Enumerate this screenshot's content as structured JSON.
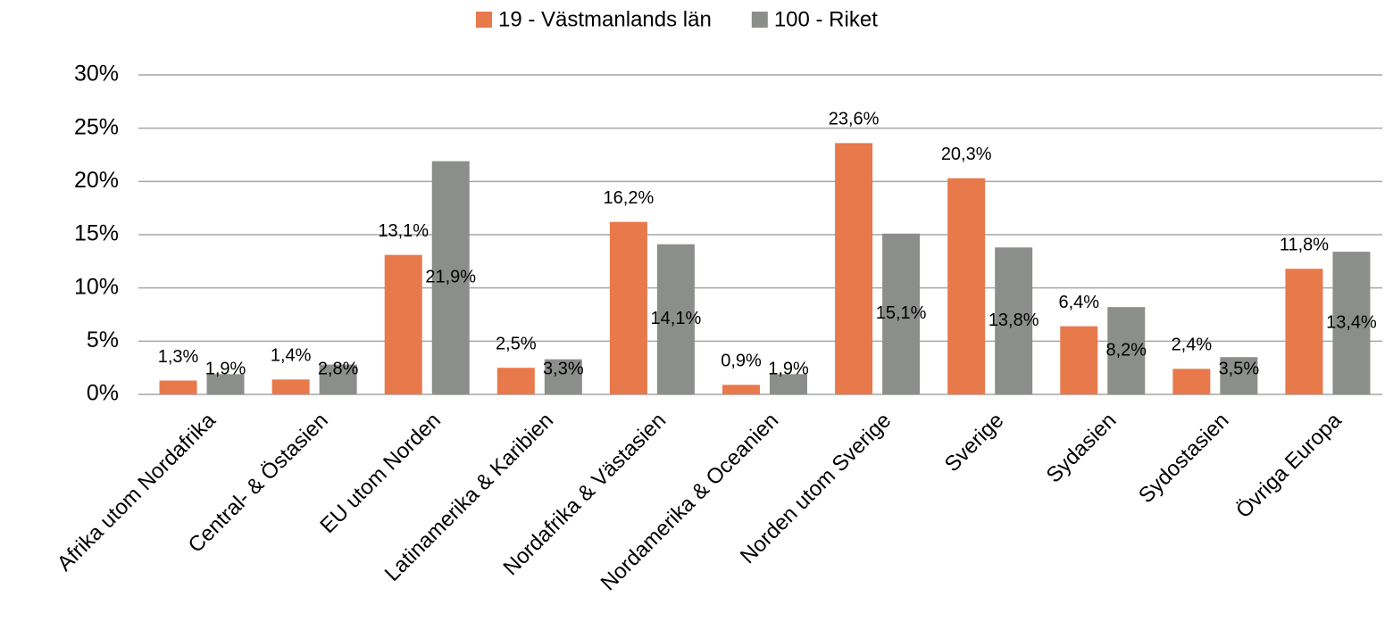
{
  "chart_data": {
    "type": "bar",
    "categories": [
      "Afrika utom Nordafrika",
      "Central- & Östasien",
      "EU utom Norden",
      "Latinamerika & Karibien",
      "Nordafrika & Västasien",
      "Nordamerika & Oceanien",
      "Norden utom Sverige",
      "Sverige",
      "Sydasien",
      "Sydostasien",
      "Övriga Europa"
    ],
    "series": [
      {
        "name": "19 - Västmanlands län",
        "color": "#e8794b",
        "values": [
          1.3,
          1.4,
          13.1,
          2.5,
          16.2,
          0.9,
          23.6,
          20.3,
          6.4,
          2.4,
          11.8
        ],
        "value_labels": [
          "1,3%",
          "1,4%",
          "13,1%",
          "2,5%",
          "16,2%",
          "0,9%",
          "23,6%",
          "20,3%",
          "6,4%",
          "2,4%",
          "11,8%"
        ]
      },
      {
        "name": "100 - Riket",
        "color": "#8b8e8b",
        "values": [
          1.9,
          2.8,
          21.9,
          3.3,
          14.1,
          1.9,
          15.1,
          13.8,
          8.2,
          3.5,
          13.4
        ],
        "value_labels": [
          "1,9%",
          "2,8%",
          "21,9%",
          "3,3%",
          "14,1%",
          "1,9%",
          "15,1%",
          "13,8%",
          "8,2%",
          "3,5%",
          "13,4%"
        ]
      }
    ],
    "ylim": [
      0,
      30
    ],
    "yticks": [
      {
        "value": 0,
        "label": "0%"
      },
      {
        "value": 5,
        "label": "5%"
      },
      {
        "value": 10,
        "label": "10%"
      },
      {
        "value": 15,
        "label": "15%"
      },
      {
        "value": 20,
        "label": "20%"
      },
      {
        "value": 25,
        "label": "25%"
      },
      {
        "value": 30,
        "label": "30%"
      }
    ],
    "grid": true,
    "legend": "top"
  }
}
